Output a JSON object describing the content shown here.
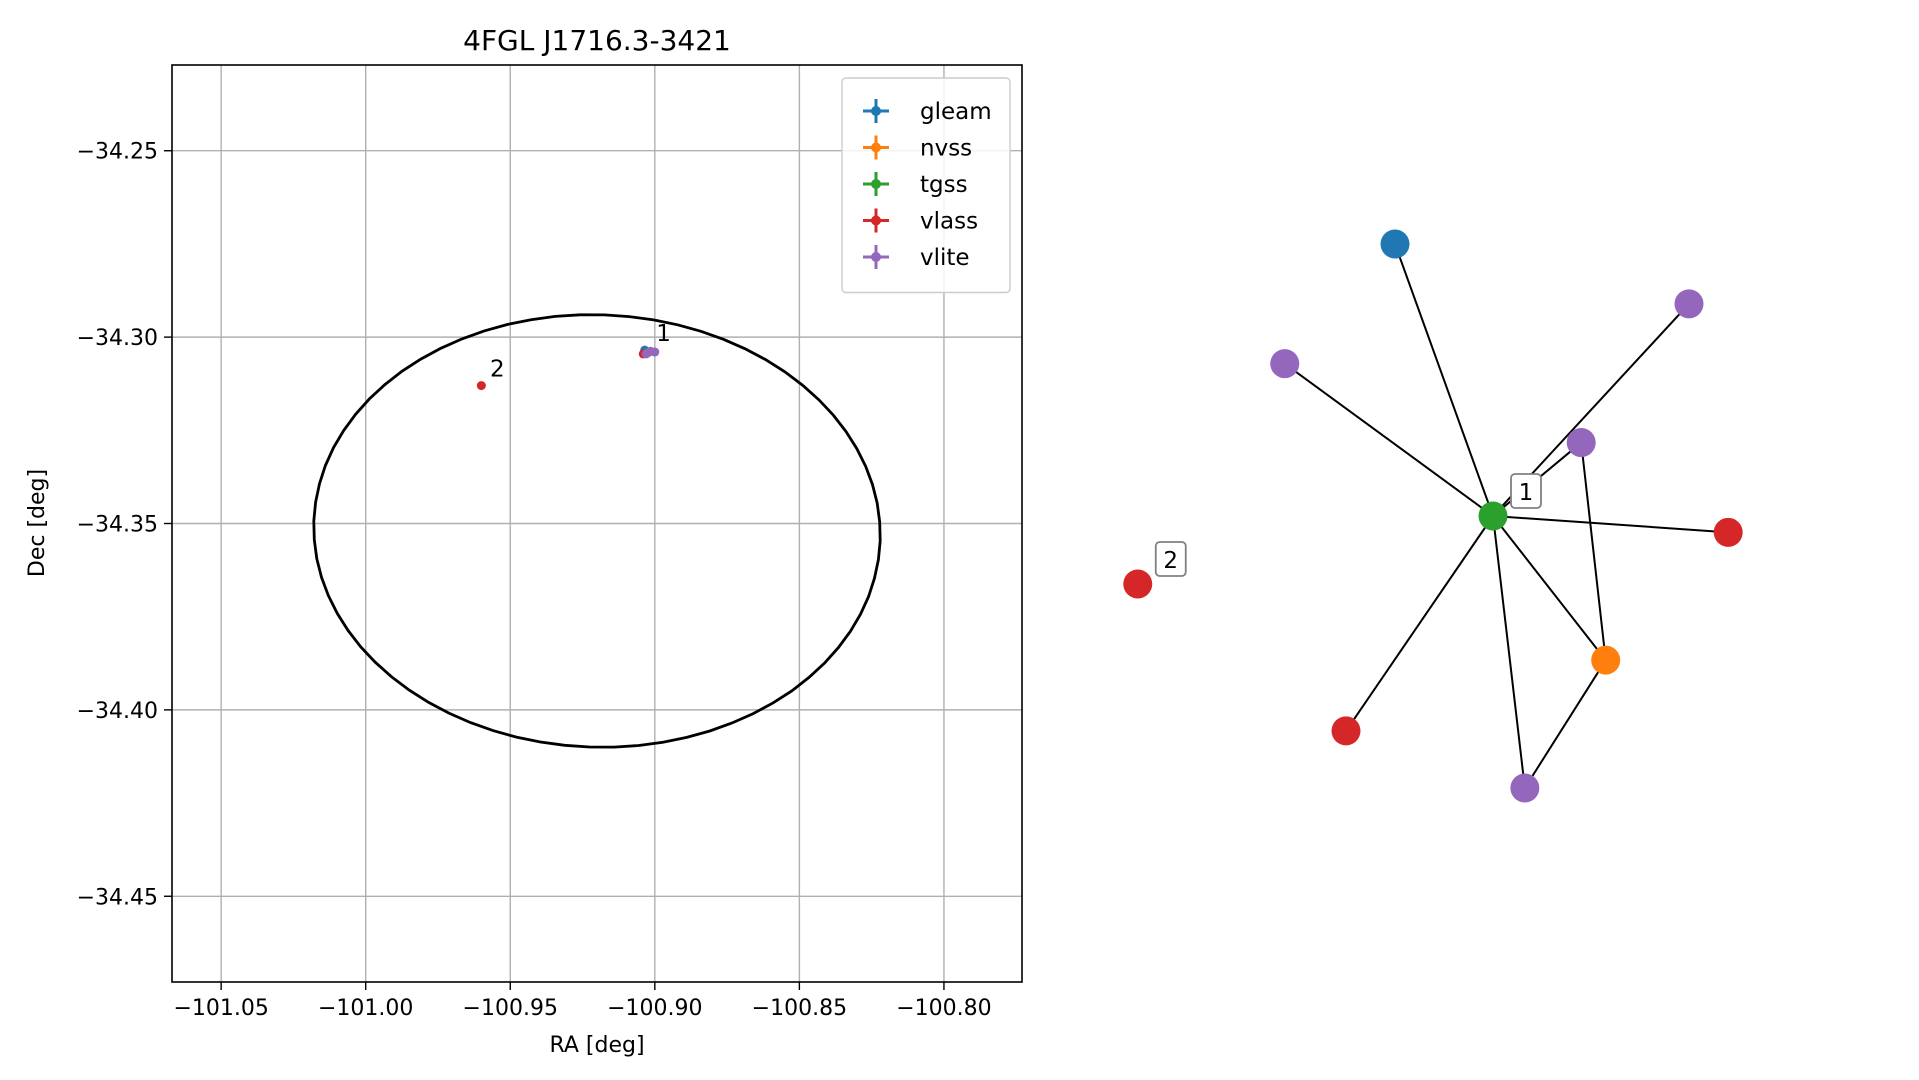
{
  "chart_data": [
    {
      "type": "scatter",
      "title": "4FGL J1716.3-3421",
      "xlabel": "RA [deg]",
      "ylabel": "Dec [deg]",
      "xlim": [
        -101.067,
        -100.773
      ],
      "ylim": [
        -34.473,
        -34.227
      ],
      "xticks": [
        -101.05,
        -101.0,
        -100.95,
        -100.9,
        -100.85,
        -100.8
      ],
      "xtick_labels": [
        "−101.05",
        "−101.00",
        "−100.95",
        "−100.90",
        "−100.85",
        "−100.80"
      ],
      "yticks": [
        -34.25,
        -34.3,
        -34.35,
        -34.4,
        -34.45
      ],
      "ytick_labels": [
        "−34.25",
        "−34.30",
        "−34.35",
        "−34.40",
        "−34.45"
      ],
      "grid": true,
      "legend_position": "top-right",
      "series": [
        {
          "name": "gleam",
          "color": "#1f77b4",
          "points": [
            [
              -100.9035,
              -34.3035
            ]
          ]
        },
        {
          "name": "nvss",
          "color": "#ff7f0e",
          "points": [
            [
              -100.9025,
              -34.3042
            ]
          ]
        },
        {
          "name": "tgss",
          "color": "#2ca02c",
          "points": [
            [
              -100.902,
              -34.304
            ]
          ]
        },
        {
          "name": "vlass",
          "color": "#d62728",
          "points": [
            [
              -100.96,
              -34.313
            ],
            [
              -100.904,
              -34.3045
            ]
          ]
        },
        {
          "name": "vlite",
          "color": "#9467bd",
          "points": [
            [
              -100.9,
              -34.304
            ],
            [
              -100.9015,
              -34.3038
            ],
            [
              -100.903,
              -34.3045
            ]
          ]
        }
      ],
      "ellipse": {
        "center": [
          -100.92,
          -34.352
        ],
        "ra_semi_axis": 0.098,
        "dec_semi_axis": 0.058,
        "color": "#000000"
      },
      "annotations": [
        {
          "text": "1",
          "x": -100.8995,
          "y": -34.301
        },
        {
          "text": "2",
          "x": -100.957,
          "y": -34.3105
        }
      ]
    },
    {
      "type": "network",
      "nodes": [
        {
          "id": "n0",
          "color": "#1f77b4",
          "x": -0.4,
          "y": 1.0
        },
        {
          "id": "n1",
          "color": "#9467bd",
          "x": 0.8,
          "y": 0.78
        },
        {
          "id": "n2",
          "color": "#9467bd",
          "x": -0.85,
          "y": 0.56
        },
        {
          "id": "n3",
          "color": "#9467bd",
          "x": 0.36,
          "y": 0.27
        },
        {
          "id": "n4",
          "color": "#2ca02c",
          "x": 0.0,
          "y": 0.0,
          "label": "1"
        },
        {
          "id": "n5",
          "color": "#d62728",
          "x": 0.96,
          "y": -0.06
        },
        {
          "id": "n6",
          "color": "#d62728",
          "x": -1.45,
          "y": -0.25,
          "label": "2"
        },
        {
          "id": "n7",
          "color": "#ff7f0e",
          "x": 0.46,
          "y": -0.53
        },
        {
          "id": "n8",
          "color": "#d62728",
          "x": -0.6,
          "y": -0.79
        },
        {
          "id": "n9",
          "color": "#9467bd",
          "x": 0.13,
          "y": -1.0
        }
      ],
      "edges": [
        [
          "n4",
          "n0"
        ],
        [
          "n4",
          "n1"
        ],
        [
          "n4",
          "n2"
        ],
        [
          "n4",
          "n3"
        ],
        [
          "n4",
          "n5"
        ],
        [
          "n4",
          "n7"
        ],
        [
          "n4",
          "n8"
        ],
        [
          "n4",
          "n9"
        ],
        [
          "n3",
          "n7"
        ],
        [
          "n7",
          "n9"
        ]
      ]
    }
  ]
}
